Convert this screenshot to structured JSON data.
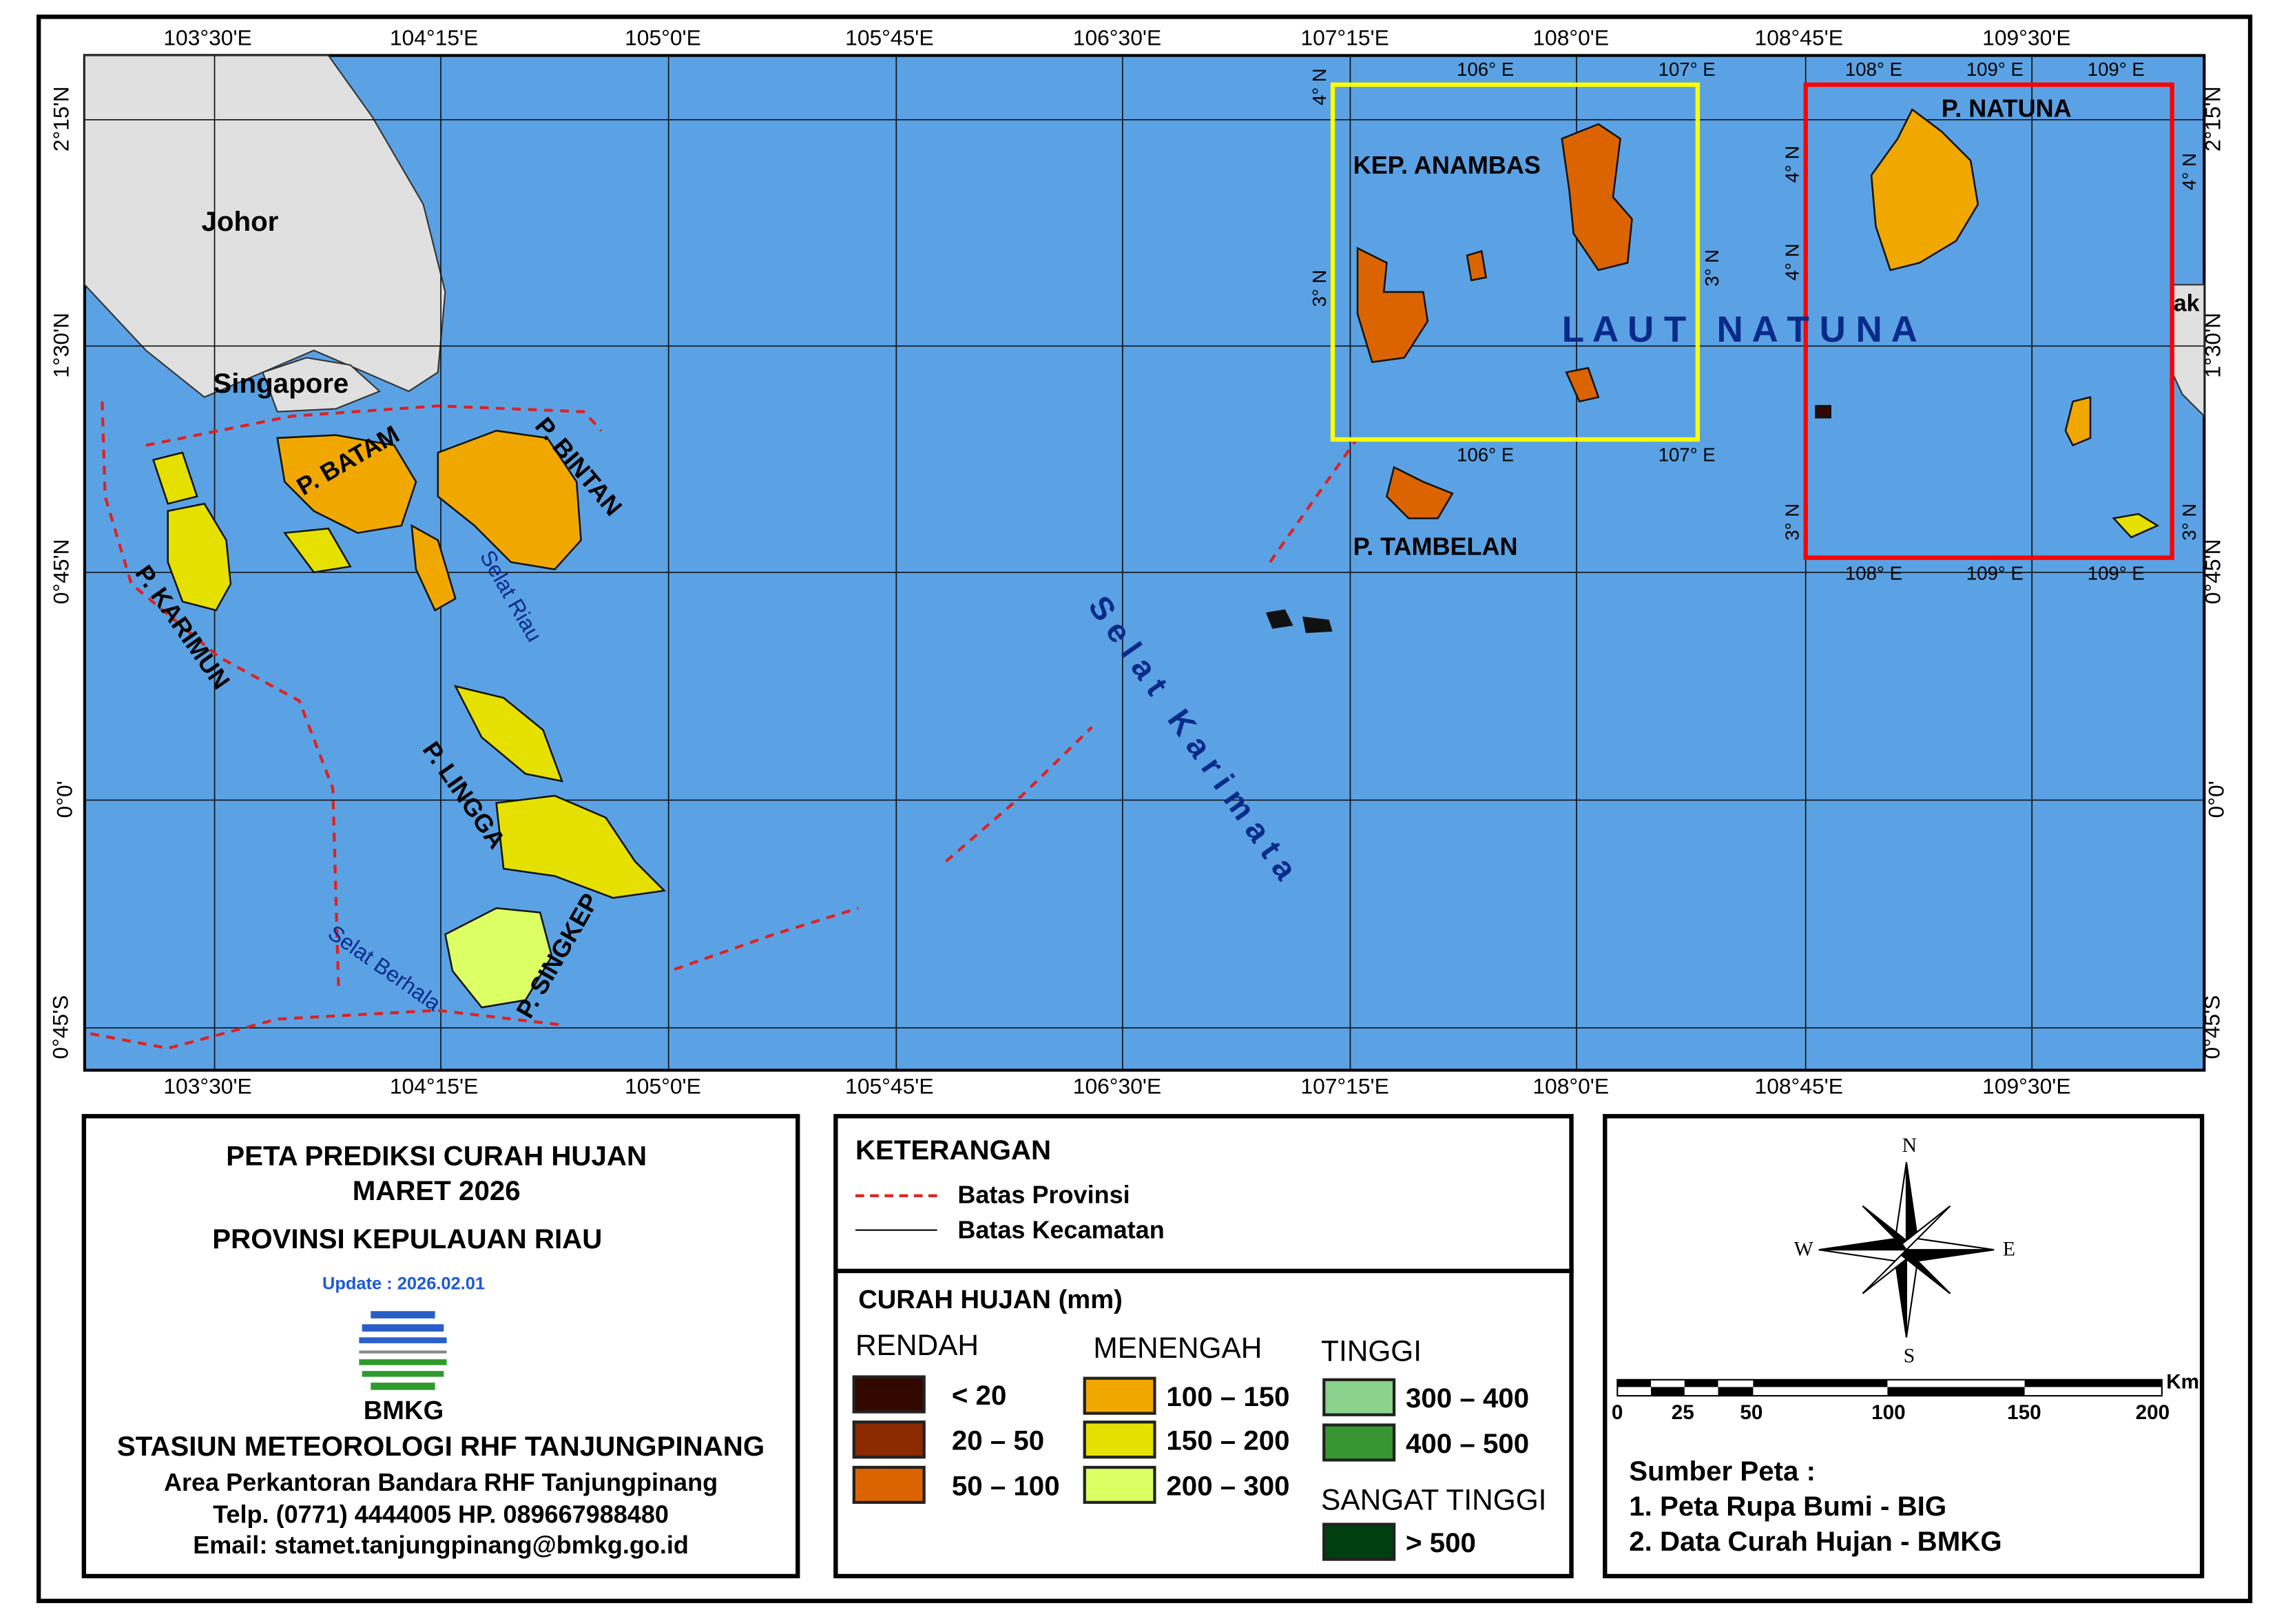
{
  "map": {
    "ticks_lon": [
      "103°30'E",
      "104°15'E",
      "105°0'E",
      "105°45'E",
      "106°30'E",
      "107°15'E",
      "108°0'E",
      "108°45'E",
      "109°30'E"
    ],
    "ticks_lat": [
      "2°15'N",
      "1°30'N",
      "0°45'N",
      "0°0'",
      "0°45'S"
    ],
    "labels": {
      "johor": "Johor",
      "singapore": "Singapore",
      "batam": "P. BATAM",
      "bintan": "P. BINTAN",
      "karimun": "P. KARIMUN",
      "selat_riau": "Selat Riau",
      "lingga": "P. LINGGA",
      "singkep": "P. SINGKEP",
      "selat_berhala": "Selat Berhala",
      "selat_karimata": "Selat Karimata",
      "laut_natuna": "L A U T   N A T U N A",
      "tambelan": "P. TAMBELAN",
      "anambas": "KEP. ANAMBAS",
      "natuna": "P. NATUNA",
      "kalbar_partial": "ak"
    },
    "inset_anambas": {
      "border_color": "#ffff00",
      "ticks_lon": [
        "106° E",
        "107° E"
      ],
      "ticks_lat": [
        "4° N",
        "3° N"
      ]
    },
    "inset_natuna": {
      "border_color": "#ff0000",
      "ticks_lon": [
        "108° E",
        "109° E",
        "109° E"
      ],
      "ticks_lat": [
        "4° N",
        "4° N",
        "3° N",
        "3° N"
      ]
    },
    "colors": {
      "sea": "#5ba2e4",
      "land_other": "#e0e0e0",
      "province_boundary": "#e02020"
    }
  },
  "title_block": {
    "title1": "PETA PREDIKSI CURAH HUJAN",
    "title2": "MARET 2026",
    "province": "PROVINSI KEPULAUAN RIAU",
    "update": "Update : 2026.02.01",
    "logo_text": "BMKG",
    "station": "STASIUN METEOROLOGI RHF TANJUNGPINANG",
    "address": "Area Perkantoran Bandara RHF Tanjungpinang",
    "phone": "Telp. (0771) 4444005  HP. 089667988480",
    "email": "Email: stamet.tanjungpinang@bmkg.go.id"
  },
  "legend": {
    "heading": "KETERANGAN",
    "lines": [
      {
        "label": "Batas Provinsi",
        "style": "dashed",
        "color": "#e02020"
      },
      {
        "label": "Batas Kecamatan",
        "style": "solid",
        "color": "#000000"
      }
    ],
    "rain_heading": "CURAH HUJAN (mm)",
    "groups": [
      {
        "name": "RENDAH",
        "classes": [
          {
            "label": "< 20",
            "color": "#330800"
          },
          {
            "label": "20 – 50",
            "color": "#8c2a00"
          },
          {
            "label": "50 – 100",
            "color": "#dc6400"
          }
        ]
      },
      {
        "name": "MENENGAH",
        "classes": [
          {
            "label": "100 – 150",
            "color": "#f0a800"
          },
          {
            "label": "150 – 200",
            "color": "#e6e000"
          },
          {
            "label": "200 – 300",
            "color": "#dcff64"
          }
        ]
      },
      {
        "name": "TINGGI",
        "classes": [
          {
            "label": "300 – 400",
            "color": "#8cd28c"
          },
          {
            "label": "400 – 500",
            "color": "#389632"
          }
        ]
      },
      {
        "name": "SANGAT TINGGI",
        "classes": [
          {
            "label": "> 500",
            "color": "#004010"
          }
        ]
      }
    ]
  },
  "info_block": {
    "compass": {
      "n": "N",
      "s": "S",
      "e": "E",
      "w": "W"
    },
    "scale": {
      "ticks": [
        "0",
        "25",
        "50",
        "100",
        "150",
        "200"
      ],
      "unit": "Km"
    },
    "source_heading": "Sumber Peta :",
    "sources": [
      "1. Peta Rupa Bumi - BIG",
      "2. Data Curah Hujan - BMKG"
    ]
  }
}
